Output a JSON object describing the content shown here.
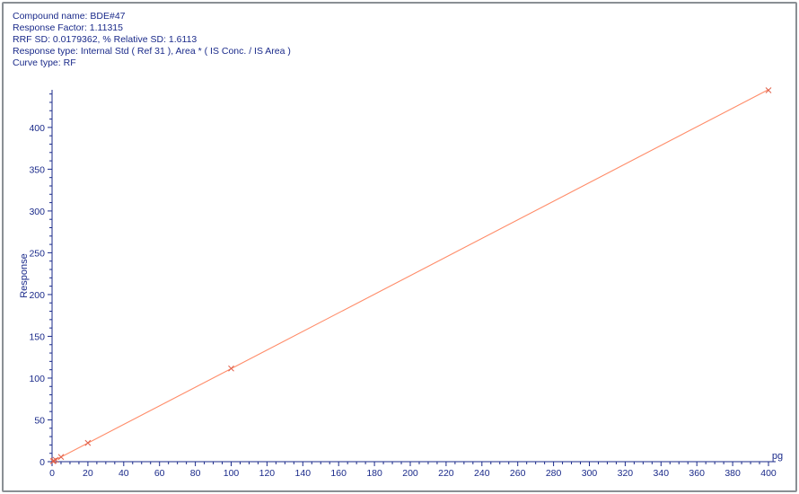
{
  "header": {
    "compound": "Compound name: BDE#47",
    "response_factor": "Response Factor: 1.11315",
    "rrf_sd": "RRF SD: 0.0179362,  % Relative SD: 1.6113",
    "response_type": "Response type: Internal Std ( Ref 31 ), Area * ( IS Conc. / IS Area )",
    "curve_type": "Curve type: RF"
  },
  "chart_data": {
    "type": "line",
    "title": "",
    "xlabel": "pg",
    "ylabel": "Response",
    "xlim": [
      0,
      400
    ],
    "ylim": [
      0,
      445
    ],
    "x_ticks": [
      0,
      20,
      40,
      60,
      80,
      100,
      120,
      140,
      160,
      180,
      200,
      220,
      240,
      260,
      280,
      300,
      320,
      340,
      360,
      380,
      400
    ],
    "y_ticks": [
      0,
      50,
      100,
      150,
      200,
      250,
      300,
      350,
      400
    ],
    "fit_line": {
      "slope": 1.11315,
      "x_range": [
        0,
        400
      ]
    },
    "points": [
      {
        "x": 0.5,
        "y": 0.6
      },
      {
        "x": 1,
        "y": 1.1
      },
      {
        "x": 2,
        "y": 2.2
      },
      {
        "x": 5,
        "y": 5.6
      },
      {
        "x": 20,
        "y": 22.4
      },
      {
        "x": 100,
        "y": 111.5
      },
      {
        "x": 400,
        "y": 444.5
      }
    ],
    "grid": false,
    "colors": {
      "line": "#ff8c69",
      "marker": "#e0604a",
      "axis": "#1a2a8a"
    }
  }
}
